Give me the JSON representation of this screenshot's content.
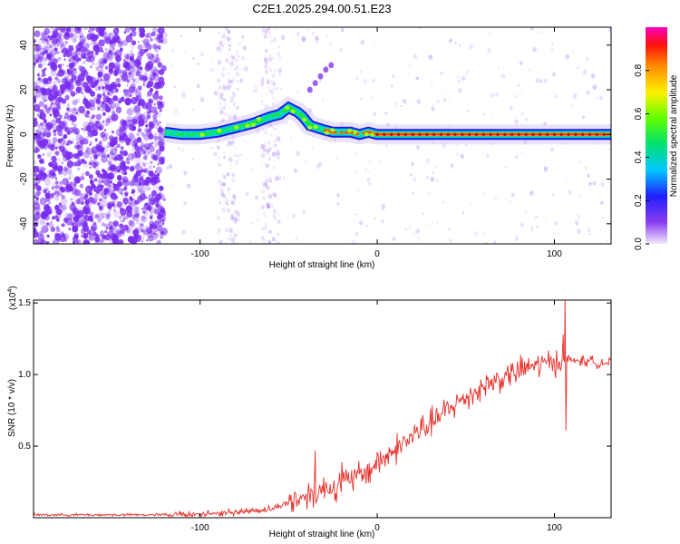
{
  "title": "C2E1.2025.294.00.51.E23",
  "colors": {
    "background": "#ffffff",
    "axis": "#000000",
    "noise": "#7a2cf0",
    "snr_line": "#e8302a"
  },
  "chart_data": [
    {
      "type": "heatmap",
      "title": "C2E1.2025.294.00.51.E23",
      "xlabel": "Height of straight line (km)",
      "ylabel": "Frequency (Hz)",
      "xlim": [
        -194,
        132
      ],
      "ylim": [
        -49,
        48
      ],
      "xticks": [
        -100,
        0,
        100
      ],
      "xtick_labels": [
        "-100",
        "0",
        "100"
      ],
      "yticks": [
        -40,
        -20,
        0,
        20,
        40
      ],
      "ytick_labels": [
        "-40",
        "-20",
        "0",
        "20",
        "40"
      ],
      "colorbar": {
        "label": "Normalized spectral amplitude",
        "range": [
          0,
          1
        ],
        "ticks": [
          0.0,
          0.2,
          0.4,
          0.6,
          0.8
        ],
        "tick_labels": [
          "0.0",
          "0.2",
          "0.4",
          "0.6",
          "0.8"
        ]
      },
      "ridge": {
        "x": [
          -120,
          -110,
          -100,
          -90,
          -80,
          -70,
          -60,
          -55,
          -50,
          -45,
          -42,
          -38,
          -34,
          -30,
          -25,
          -20,
          -15,
          -10,
          -5,
          0,
          5,
          15,
          30,
          60,
          100,
          132
        ],
        "y": [
          1,
          0,
          0,
          1,
          3,
          5,
          8,
          9,
          12,
          10,
          8,
          4,
          3,
          2,
          1,
          1,
          1,
          0,
          1,
          0,
          0,
          0,
          0,
          0,
          0,
          0
        ]
      },
      "faint_branch": {
        "x": [
          -38,
          -35,
          -32,
          -29,
          -26
        ],
        "y": [
          20,
          23,
          26,
          29,
          31
        ]
      }
    },
    {
      "type": "line",
      "xlabel": "Height of straight line (km)",
      "ylabel": "SNR (10 * v/v)",
      "y_multiplier_label": "(x10",
      "y_multiplier_exponent": "4",
      "xlim": [
        -194,
        132
      ],
      "ylim": [
        0,
        1.52
      ],
      "xticks": [
        -100,
        0,
        100
      ],
      "xtick_labels": [
        "-100",
        "0",
        "100"
      ],
      "yticks": [
        0.5,
        1.0,
        1.5
      ],
      "ytick_labels": [
        "0.5",
        "1.0",
        "1.5"
      ],
      "trend": {
        "x": [
          -194,
          -120,
          -90,
          -60,
          -45,
          -35,
          -25,
          -15,
          -5,
          5,
          15,
          25,
          35,
          45,
          55,
          65,
          75,
          85,
          95,
          105,
          110,
          120,
          132
        ],
        "y": [
          0.02,
          0.02,
          0.03,
          0.06,
          0.13,
          0.18,
          0.22,
          0.26,
          0.33,
          0.43,
          0.52,
          0.62,
          0.7,
          0.8,
          0.88,
          0.95,
          1.0,
          1.05,
          1.08,
          1.1,
          1.1,
          1.09,
          1.08
        ]
      },
      "spikes": [
        {
          "x": -35,
          "y": 0.47
        },
        {
          "x": -20,
          "y": 0.39
        },
        {
          "x": 105,
          "y": 1.28
        },
        {
          "x": 106,
          "y": 1.55
        },
        {
          "x": 106.5,
          "y": 0.61
        }
      ]
    }
  ]
}
